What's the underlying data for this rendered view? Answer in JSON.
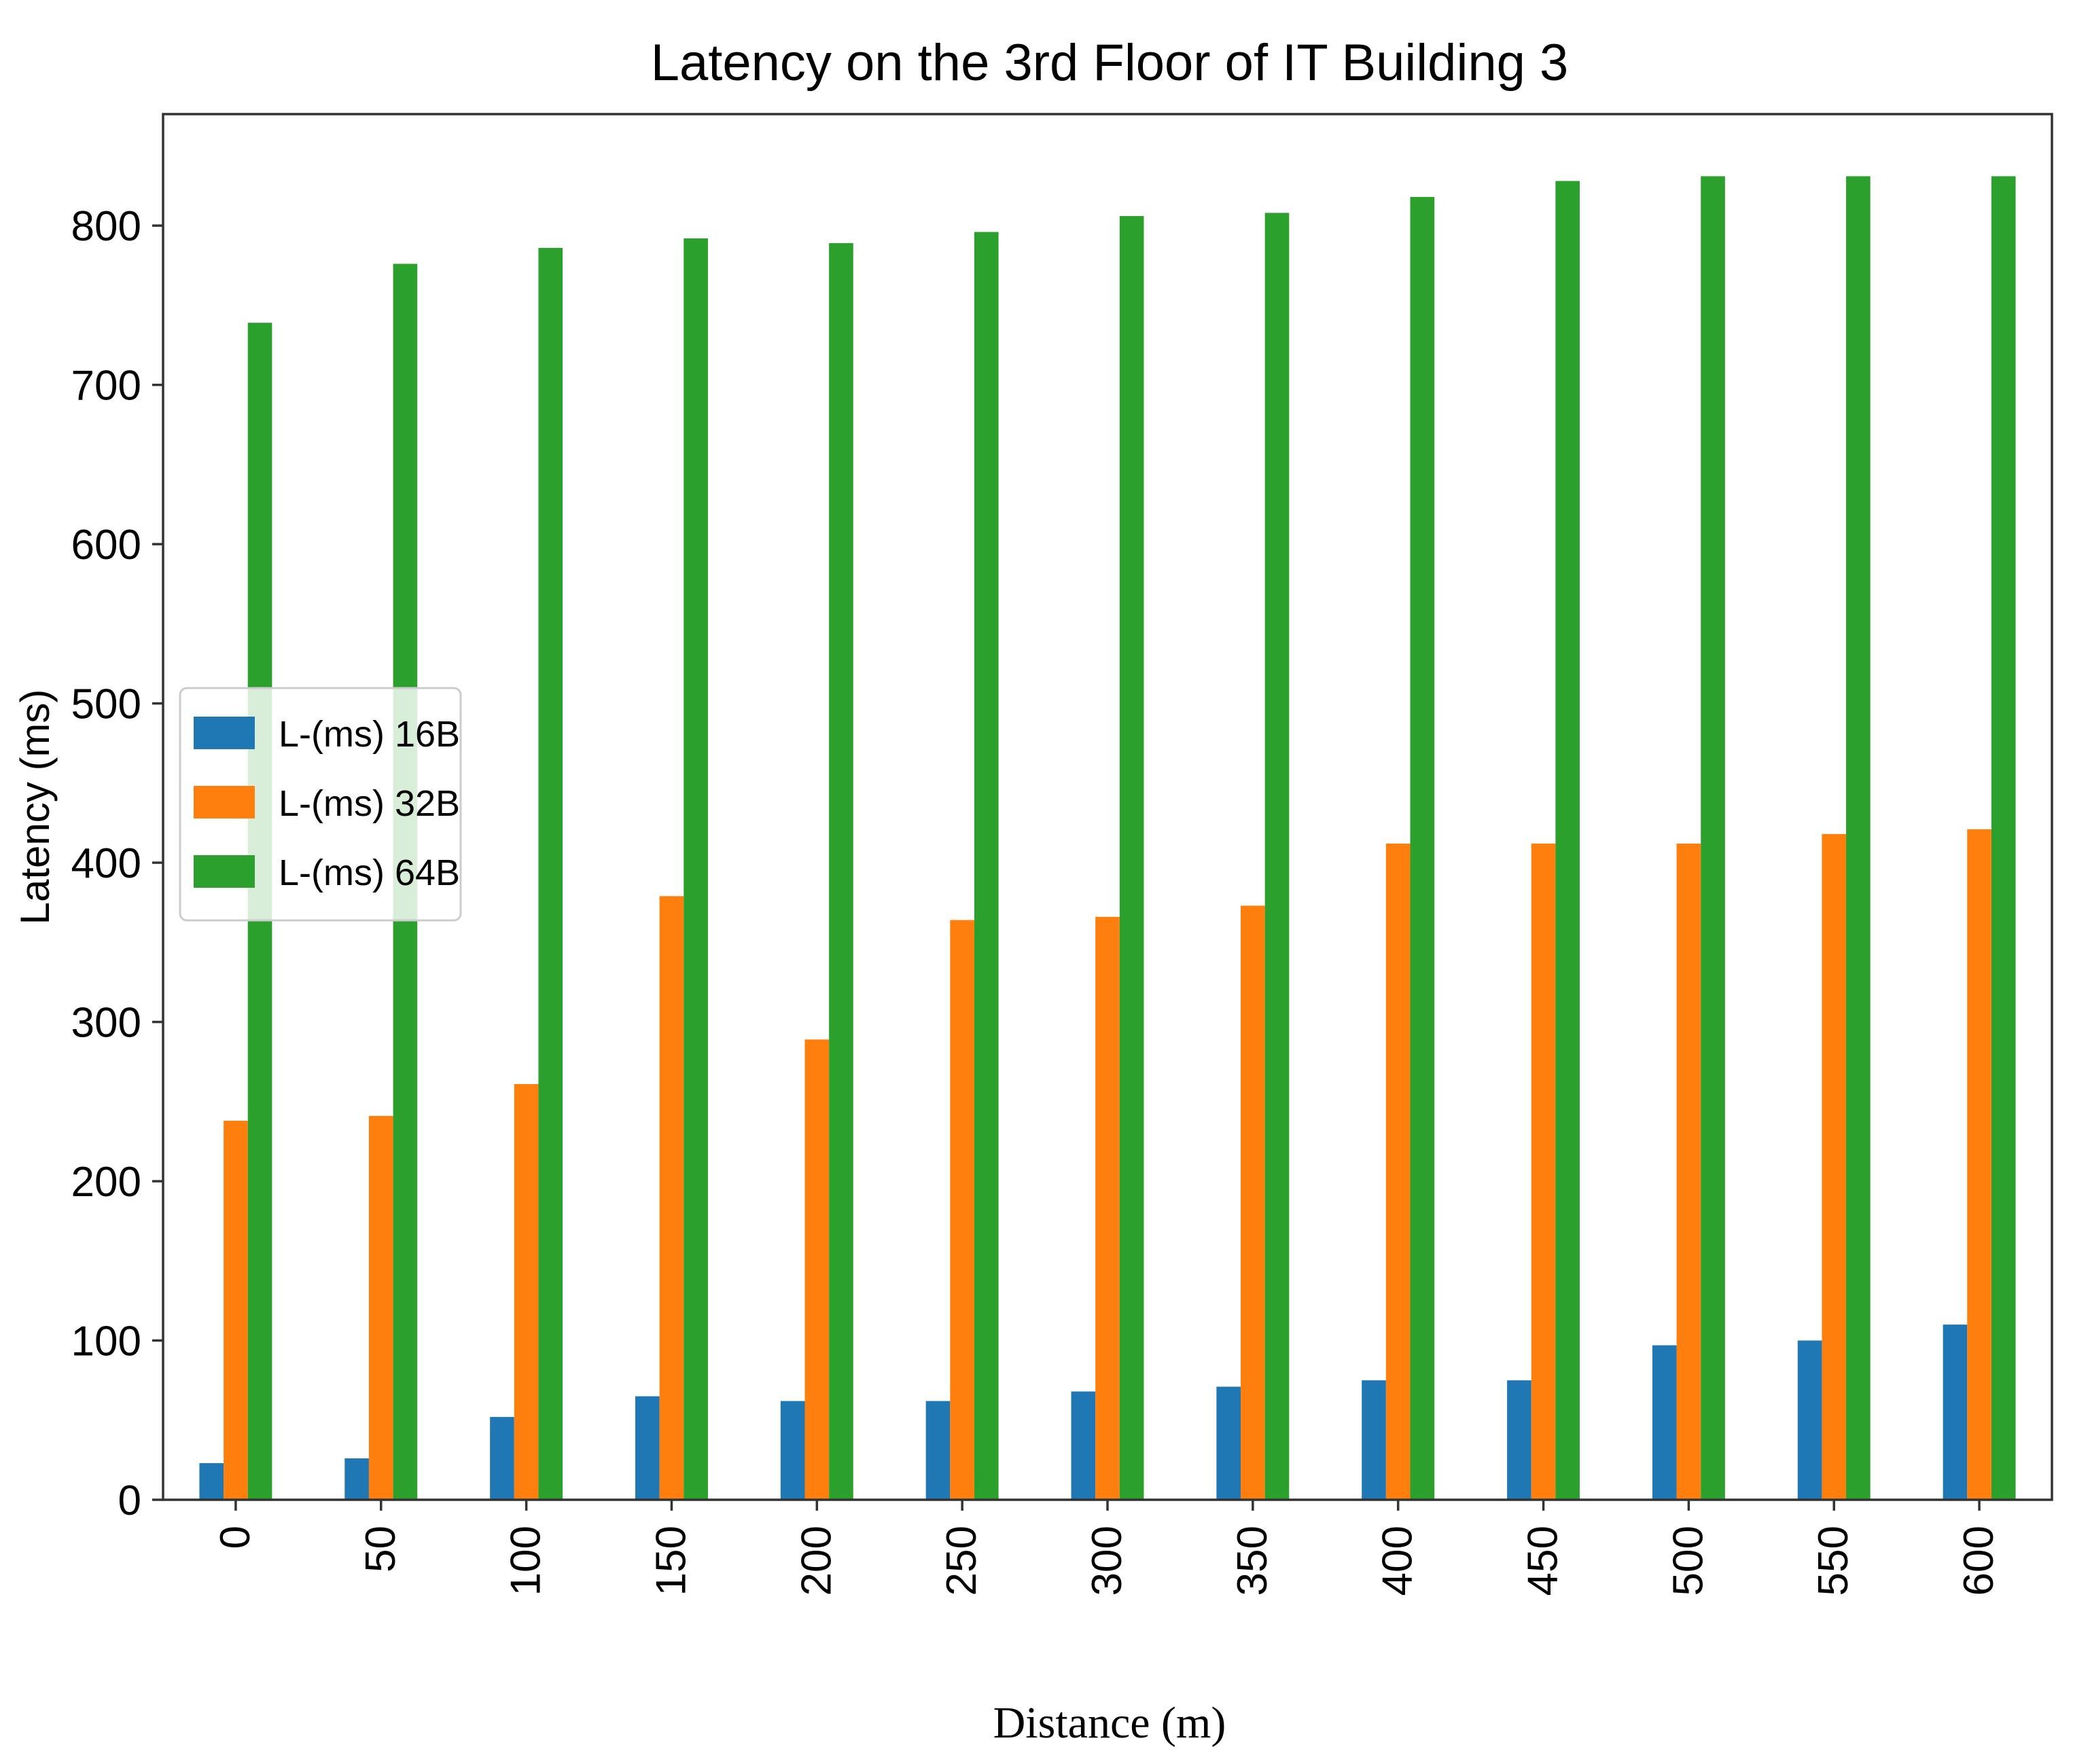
{
  "chart_data": {
    "type": "bar",
    "title": "Latency on the 3rd Floor of IT Building 3",
    "xlabel": "Distance (m)",
    "ylabel": "Latency (ms)",
    "ylim": [
      0,
      870
    ],
    "yticks": [
      0,
      100,
      200,
      300,
      400,
      500,
      600,
      700,
      800
    ],
    "grid": false,
    "legend_position": "center-left",
    "categories": [
      "0",
      "50",
      "100",
      "150",
      "200",
      "250",
      "300",
      "350",
      "400",
      "450",
      "500",
      "550",
      "600"
    ],
    "series": [
      {
        "name": "L-(ms) 16B",
        "color": "#1f77b4",
        "values": [
          23,
          26,
          52,
          65,
          62,
          62,
          68,
          71,
          75,
          75,
          97,
          100,
          110
        ]
      },
      {
        "name": "L-(ms) 32B",
        "color": "#ff7f0e",
        "values": [
          238,
          241,
          261,
          379,
          289,
          364,
          366,
          373,
          412,
          412,
          412,
          418,
          421
        ]
      },
      {
        "name": "L-(ms) 64B",
        "color": "#2ca02c",
        "values": [
          739,
          776,
          786,
          792,
          789,
          796,
          806,
          808,
          818,
          828,
          831,
          831,
          831
        ]
      }
    ]
  }
}
